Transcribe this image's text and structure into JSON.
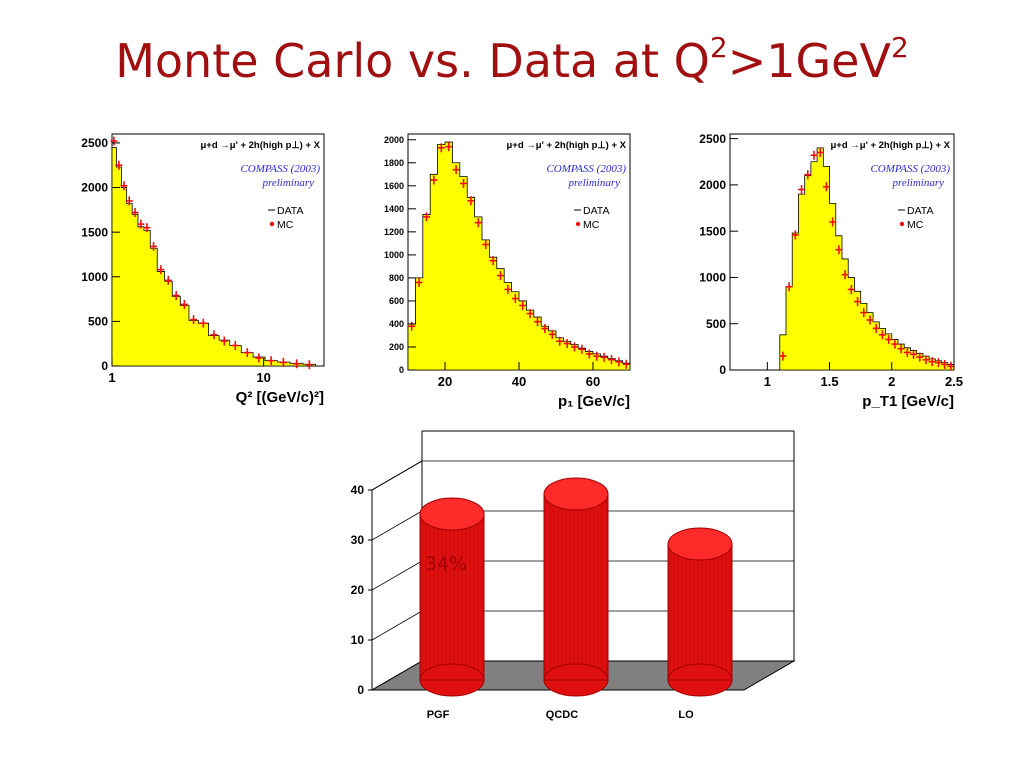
{
  "title": {
    "main": "Monte Carlo vs. Data at Q",
    "sup1": "2",
    "mid": ">1GeV",
    "sup2": "2"
  },
  "histograms": [
    {
      "reaction": "μ+d →μ' + 2h(high p⊥) + X",
      "experiment": "COMPASS (2003)",
      "status": "preliminary",
      "legend": [
        "DATA",
        "MC"
      ],
      "xlabel": "Q² [(GeV/c)²]",
      "xscale": "log",
      "xticks": [
        "1",
        "10"
      ],
      "yticks": [
        "0",
        "500",
        "1000",
        "1500",
        "2000",
        "2500"
      ],
      "xlim": [
        1,
        25
      ],
      "ylim": [
        0,
        2600
      ],
      "x": [
        1.03,
        1.11,
        1.2,
        1.3,
        1.42,
        1.55,
        1.7,
        1.88,
        2.1,
        2.35,
        2.65,
        3.0,
        3.45,
        4.0,
        4.7,
        5.5,
        6.5,
        7.8,
        9.3,
        11.2,
        13.5,
        16.5,
        20
      ],
      "data": [
        2450,
        2230,
        2000,
        1820,
        1700,
        1560,
        1520,
        1320,
        1060,
        950,
        780,
        680,
        510,
        480,
        340,
        290,
        230,
        150,
        100,
        60,
        45,
        30,
        20
      ],
      "mc": [
        2520,
        2250,
        2020,
        1850,
        1720,
        1590,
        1550,
        1340,
        1080,
        960,
        790,
        690,
        520,
        480,
        350,
        280,
        230,
        150,
        90,
        60,
        40,
        25,
        15
      ]
    },
    {
      "reaction": "μ+d →μ' + 2h(high p⊥) + X",
      "experiment": "COMPASS (2003)",
      "status": "preliminary",
      "legend": [
        "DATA",
        "MC"
      ],
      "xlabel": "p₁ [GeV/c]",
      "xscale": "linear",
      "xticks": [
        "20",
        "40",
        "60"
      ],
      "yticks": [
        "0",
        "200",
        "400",
        "600",
        "800",
        "1000",
        "1200",
        "1400",
        "1600",
        "1800",
        "2000"
      ],
      "xlim": [
        10,
        70
      ],
      "ylim": [
        0,
        2050
      ],
      "x": [
        11,
        13,
        15,
        17,
        19,
        21,
        23,
        25,
        27,
        29,
        31,
        33,
        35,
        37,
        39,
        41,
        43,
        45,
        47,
        49,
        51,
        53,
        55,
        57,
        59,
        61,
        63,
        65,
        67,
        69
      ],
      "data": [
        400,
        800,
        1350,
        1700,
        1960,
        1980,
        1800,
        1680,
        1500,
        1330,
        1130,
        980,
        880,
        760,
        680,
        600,
        520,
        460,
        380,
        340,
        280,
        250,
        220,
        190,
        160,
        140,
        120,
        100,
        80,
        60
      ],
      "mc": [
        380,
        760,
        1330,
        1650,
        1930,
        1940,
        1740,
        1620,
        1470,
        1280,
        1090,
        950,
        820,
        700,
        620,
        560,
        490,
        420,
        360,
        310,
        250,
        230,
        200,
        180,
        140,
        120,
        110,
        90,
        70,
        50
      ]
    },
    {
      "reaction": "μ+d →μ' + 2h(high p⊥) + X",
      "experiment": "COMPASS (2003)",
      "status": "preliminary",
      "legend": [
        "DATA",
        "MC"
      ],
      "xlabel": "p_T1 [GeV/c]",
      "xscale": "linear",
      "xticks": [
        "1",
        "1.5",
        "2",
        "2.5"
      ],
      "yticks": [
        "0",
        "500",
        "1000",
        "1500",
        "2000",
        "2500"
      ],
      "xlim": [
        0.7,
        2.5
      ],
      "ylim": [
        0,
        2550
      ],
      "x": [
        1.125,
        1.175,
        1.225,
        1.275,
        1.325,
        1.375,
        1.425,
        1.475,
        1.525,
        1.575,
        1.625,
        1.675,
        1.725,
        1.775,
        1.825,
        1.875,
        1.925,
        1.975,
        2.025,
        2.075,
        2.125,
        2.175,
        2.225,
        2.275,
        2.325,
        2.375,
        2.425,
        2.475
      ],
      "data": [
        380,
        900,
        1480,
        1900,
        2100,
        2250,
        2400,
        2200,
        1800,
        1450,
        1200,
        1000,
        850,
        720,
        620,
        520,
        450,
        390,
        330,
        280,
        240,
        210,
        180,
        150,
        120,
        100,
        80,
        60
      ],
      "mc": [
        150,
        900,
        1460,
        1950,
        2110,
        2320,
        2350,
        1980,
        1600,
        1300,
        1030,
        870,
        740,
        620,
        540,
        450,
        380,
        330,
        280,
        230,
        190,
        170,
        140,
        110,
        90,
        80,
        60,
        40
      ]
    }
  ],
  "bar_chart": {
    "type": "bar",
    "categories": [
      "PGF",
      "QCDC",
      "LO"
    ],
    "values": [
      34,
      38,
      28
    ],
    "yticks": [
      "0",
      "10",
      "20",
      "30",
      "40"
    ],
    "ylim": [
      0,
      40
    ],
    "annotation": "34%",
    "colors": {
      "bar": "#e01010",
      "bar_dark": "#a00000",
      "bar_top": "#ff2a2a",
      "floor": "#808080"
    }
  },
  "colors": {
    "title": "#a01010",
    "fill": "#ffff00",
    "mc": "#ee1111",
    "label": "#2a2ad0"
  }
}
